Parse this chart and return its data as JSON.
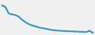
{
  "values": [
    10,
    9.5,
    7.5,
    7.2,
    7.0,
    6.5,
    5.5,
    4.8,
    4.2,
    3.8,
    3.5,
    3.2,
    3.0,
    2.8,
    2.6,
    2.4,
    2.3,
    2.2,
    2.15,
    2.1,
    2.05,
    2.0,
    1.95,
    1.9,
    1.85,
    1.8,
    2.2,
    1.5
  ],
  "line_color": "#3399cc",
  "linewidth": 1.5,
  "background_color": "#f0f0f0",
  "ylim_min": 1.0,
  "ylim_max": 11.5
}
